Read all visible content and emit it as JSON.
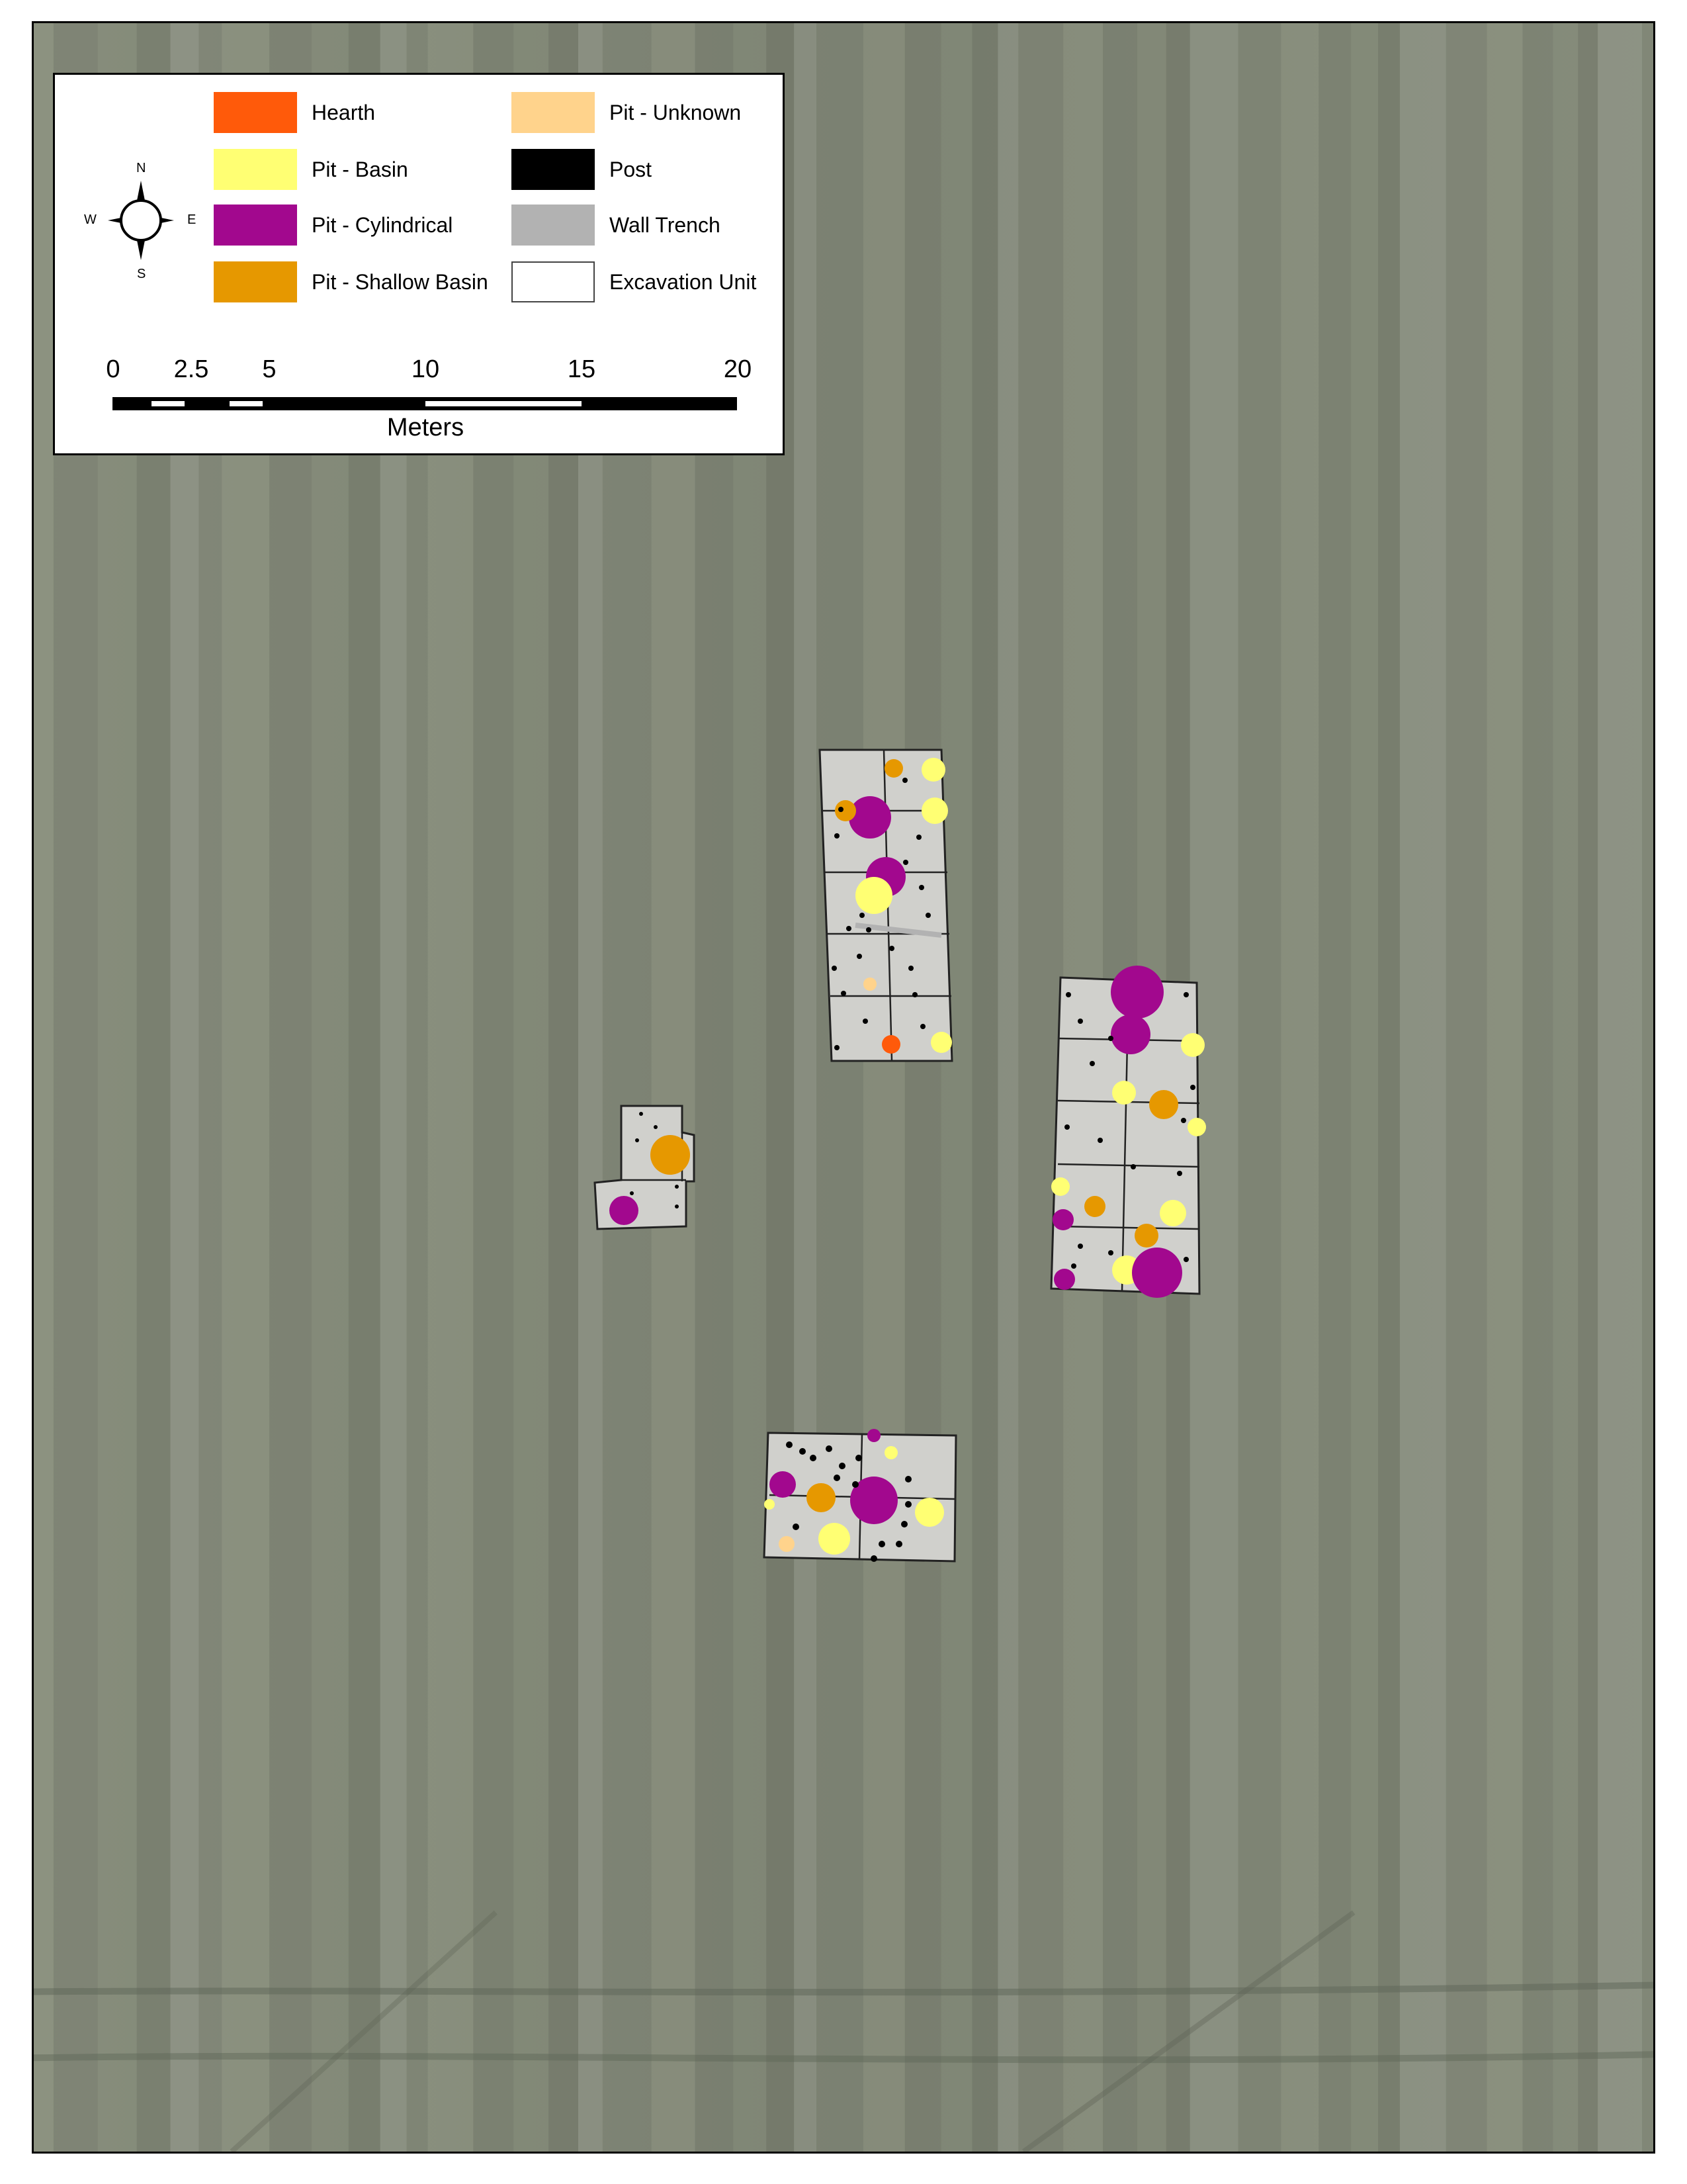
{
  "legend": {
    "items": [
      {
        "label": "Hearth",
        "color": "#ff5a0a"
      },
      {
        "label": "Pit - Basin",
        "color": "#ffff73"
      },
      {
        "label": "Pit - Cylindrical",
        "color": "#a2088e"
      },
      {
        "label": "Pit - Shallow Basin",
        "color": "#e69800"
      },
      {
        "label": "Pit - Unknown",
        "color": "#ffd38c"
      },
      {
        "label": "Post",
        "color": "#000000"
      },
      {
        "label": "Wall Trench",
        "color": "#b2b2b2"
      },
      {
        "label": "Excavation Unit",
        "color": "#ffffff"
      }
    ],
    "compass": {
      "n": "N",
      "s": "S",
      "e": "E",
      "w": "W",
      "icon": "north-arrow-icon"
    }
  },
  "scale_bar": {
    "ticks": [
      "0",
      "2.5",
      "5",
      "10",
      "15",
      "20"
    ],
    "unit_label": "Meters"
  },
  "map": {
    "background": "aerial imagery of plowed field",
    "feature_colors": {
      "excavation_unit": "#d0d0cc",
      "unit_outline": "#222222"
    }
  }
}
